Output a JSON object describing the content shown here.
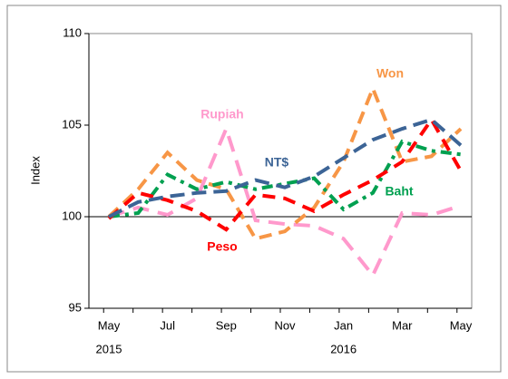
{
  "chart_data": {
    "type": "line",
    "y_label": "Index",
    "categories": [
      "May",
      null,
      "Jul",
      null,
      "Sep",
      null,
      "Nov",
      null,
      "Jan",
      null,
      "Mar",
      null,
      "May"
    ],
    "x_groups": [
      {
        "label": "2015",
        "start": 0
      },
      {
        "label": "2016",
        "start": 8
      }
    ],
    "ylim": [
      95,
      110
    ],
    "yticks": [
      95,
      100,
      105,
      110
    ],
    "reference_line": 100,
    "series": [
      {
        "name": "Rupiah",
        "color": "#ff99cc",
        "values": [
          100,
          100.5,
          100.1,
          101,
          104.8,
          99.8,
          99.6,
          99.5,
          98.8,
          96.8,
          100.2,
          100.1,
          100.6
        ]
      },
      {
        "name": "Won",
        "color": "#f79646",
        "values": [
          100,
          101.5,
          103.5,
          102,
          101.5,
          98.8,
          99.2,
          100.5,
          103,
          107,
          103,
          103.3,
          104.8
        ]
      },
      {
        "name": "Baht",
        "color": "#00a050",
        "values": [
          100,
          100.2,
          102.3,
          101.5,
          101.9,
          101.5,
          101.8,
          102.1,
          100.4,
          101.3,
          104.1,
          103.6,
          103.4
        ]
      },
      {
        "name": "Peso",
        "color": "#ff0000",
        "values": [
          99.9,
          101.3,
          100.9,
          100.3,
          99.3,
          101.2,
          101,
          100.3,
          101.2,
          102,
          103,
          105.3,
          102.5
        ]
      },
      {
        "name": "NT$",
        "color": "#3c6496",
        "values": [
          100,
          100.8,
          101.1,
          101.3,
          101.4,
          102,
          101.6,
          102.2,
          103.2,
          104.2,
          104.8,
          105.3,
          103.9
        ]
      }
    ]
  }
}
